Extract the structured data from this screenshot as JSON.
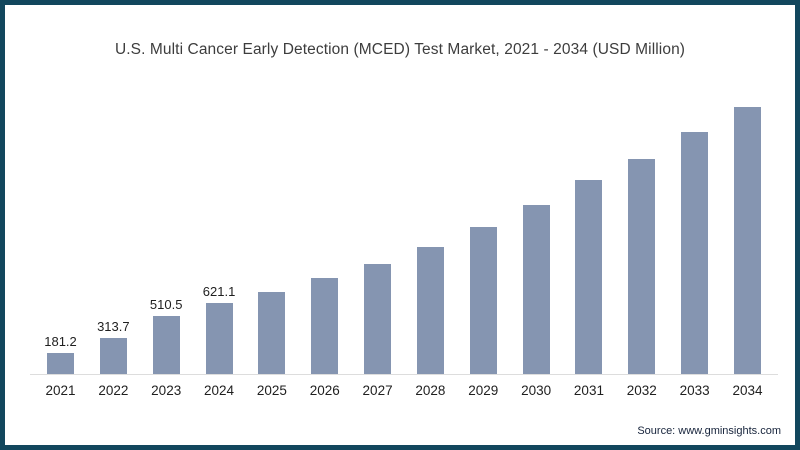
{
  "page": {
    "source_text": "Source: www.gminsights.com"
  },
  "colors": {
    "bar": "#8595B1",
    "frame_border": "#12475D",
    "axis_line": "#DDDDDD",
    "title_text": "#3D3D3D",
    "label_text": "#1F1F1F",
    "source_text": "#16233B",
    "background": "#FFFFFF"
  },
  "chart_data": {
    "type": "bar",
    "title": "U.S. Multi Cancer Early Detection (MCED) Test Market, 2021 - 2034 (USD Million)",
    "categories": [
      "2021",
      "2022",
      "2023",
      "2024",
      "2025",
      "2026",
      "2027",
      "2028",
      "2029",
      "2030",
      "2031",
      "2032",
      "2033",
      "2034"
    ],
    "values": [
      181.2,
      313.7,
      510.5,
      621.1,
      720,
      840,
      960,
      1110,
      1280,
      1475,
      1695,
      1880,
      2110,
      2330
    ],
    "data_labels": [
      "181.2",
      "313.7",
      "510.5",
      "621.1",
      "",
      "",
      "",
      "",
      "",
      "",
      "",
      "",
      "",
      ""
    ],
    "xlabel": "",
    "ylabel": "",
    "ylim": [
      0,
      2480
    ],
    "grid": false,
    "legend": false,
    "y_axis_visible": false,
    "x_baseline_visible": true
  }
}
